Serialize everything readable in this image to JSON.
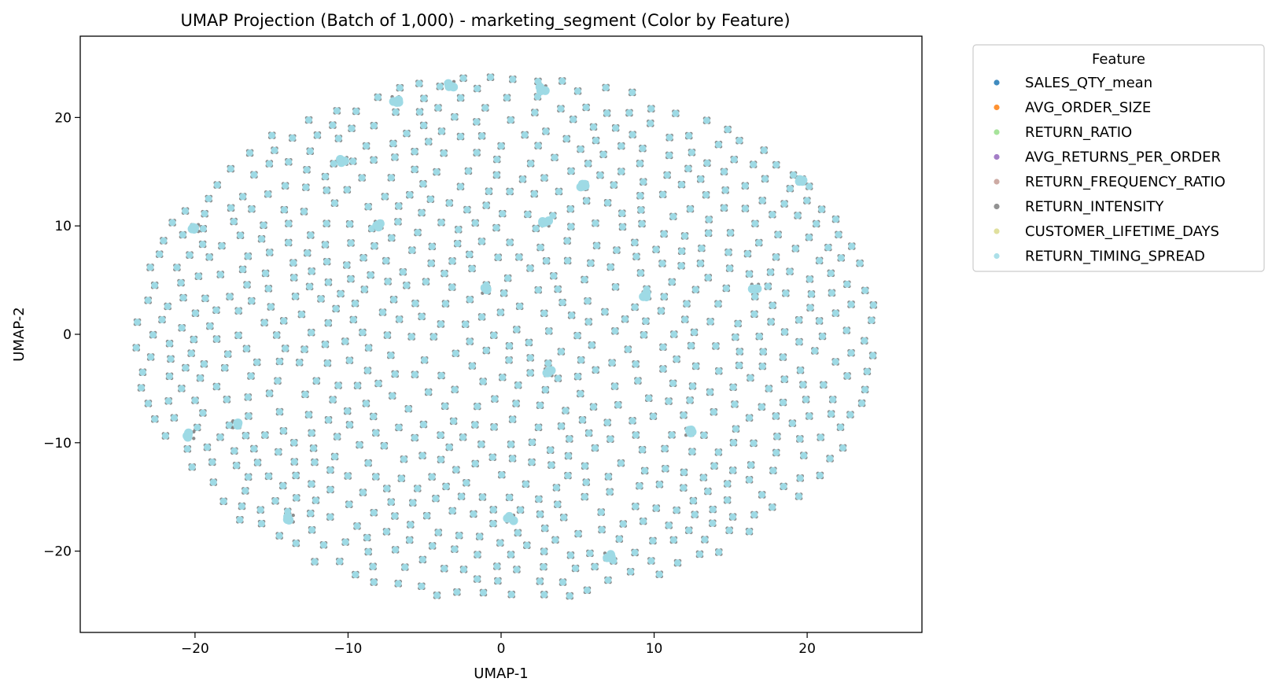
{
  "chart_data": {
    "type": "scatter",
    "title": "UMAP Projection (Batch of 1,000) - marketing_segment (Color by Feature)",
    "xlabel": "UMAP-1",
    "ylabel": "UMAP-2",
    "xlim": [
      -27.5,
      27.5
    ],
    "ylim": [
      -27.5,
      27.5
    ],
    "xticks": [
      -20,
      -10,
      0,
      10,
      20
    ],
    "yticks": [
      -20,
      -10,
      0,
      10,
      20
    ],
    "grid": false,
    "legend": {
      "title": "Feature",
      "placement": "outside-top-right",
      "entries": [
        {
          "name": "SALES_QTY_mean",
          "color": "#1f77b4"
        },
        {
          "name": "AVG_ORDER_SIZE",
          "color": "#ff7f0e"
        },
        {
          "name": "RETURN_RATIO",
          "color": "#98df8a"
        },
        {
          "name": "AVG_RETURNS_PER_ORDER",
          "color": "#9467bd"
        },
        {
          "name": "RETURN_FREQUENCY_RATIO",
          "color": "#c49c94"
        },
        {
          "name": "RETURN_INTENSITY",
          "color": "#7f7f7f"
        },
        {
          "name": "CUSTOMER_LIFETIME_DAYS",
          "color": "#dbdb8d"
        },
        {
          "name": "RETURN_TIMING_SPREAD",
          "color": "#9edae5"
        }
      ]
    },
    "point_count": 1000,
    "top_series_color": "#9edae5",
    "underlay_color": "#7f7f7f",
    "cluster_points": [
      [
        -6.9,
        21.6
      ],
      [
        -8.0,
        10.1
      ],
      [
        2.9,
        10.3
      ],
      [
        5.4,
        13.7
      ],
      [
        12.3,
        -9.0
      ],
      [
        -20.3,
        -9.3
      ],
      [
        -17.3,
        -8.3
      ],
      [
        3.1,
        -3.5
      ],
      [
        7.0,
        -20.5
      ],
      [
        -3.3,
        23.0
      ],
      [
        0.6,
        -17.0
      ],
      [
        -20.0,
        9.8
      ],
      [
        9.5,
        3.6
      ],
      [
        -13.8,
        -17.0
      ],
      [
        19.6,
        14.2
      ],
      [
        -1.0,
        4.1
      ],
      [
        -10.3,
        16.0
      ],
      [
        16.6,
        4.3
      ],
      [
        2.7,
        22.6
      ]
    ],
    "generation": {
      "seed": 20240517,
      "center": [
        0.3,
        -0.3
      ],
      "rx": 24.3,
      "ry": 24.2
    }
  }
}
